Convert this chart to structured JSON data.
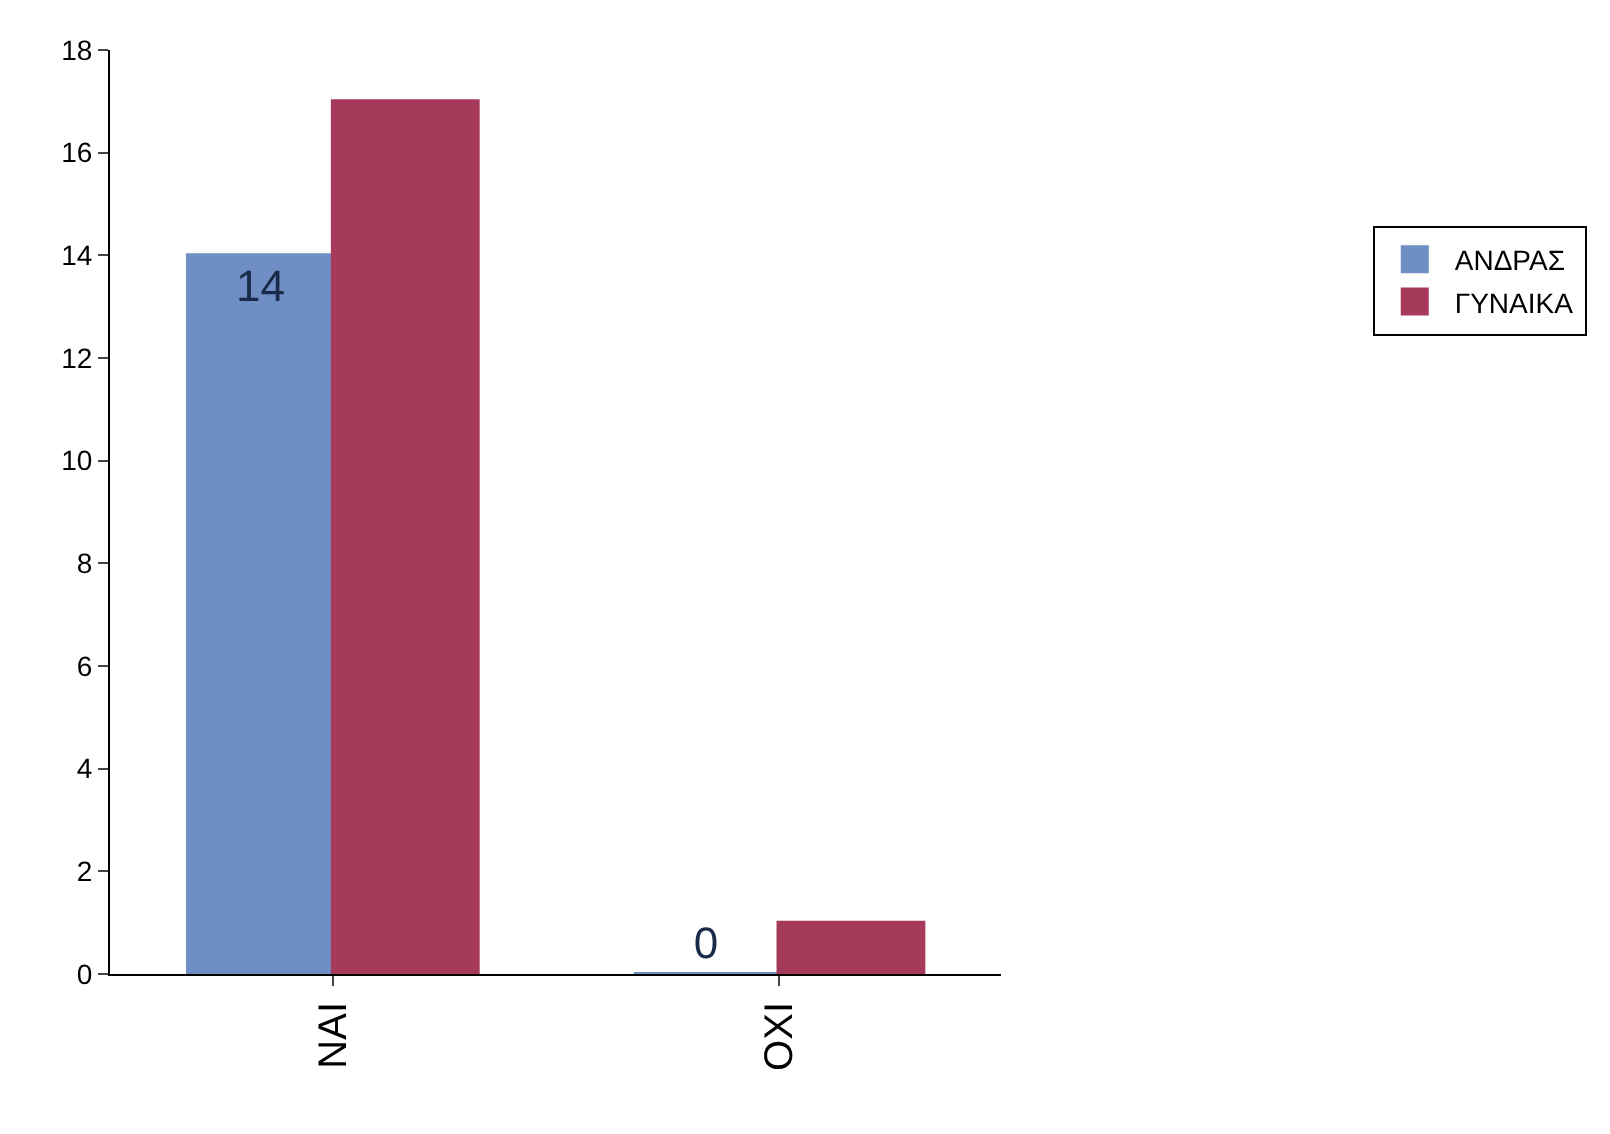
{
  "chart_data": {
    "type": "bar",
    "categories": [
      "ΝΑΙ",
      "ΟΧΙ"
    ],
    "series": [
      {
        "name": "ΑΝΔΡΑΣ",
        "color": "#6f8fc4",
        "values": [
          14,
          0
        ],
        "value_labels": [
          "14",
          "0"
        ]
      },
      {
        "name": "ΓΥΝΑΙΚΑ",
        "color": "#a53a5a",
        "values": [
          17,
          1
        ],
        "value_labels": [
          null,
          null
        ]
      }
    ],
    "ylim": [
      0,
      18
    ],
    "yticks": [
      0,
      2,
      4,
      6,
      8,
      10,
      12,
      14,
      16,
      18
    ],
    "grid": false,
    "legend": "right"
  }
}
